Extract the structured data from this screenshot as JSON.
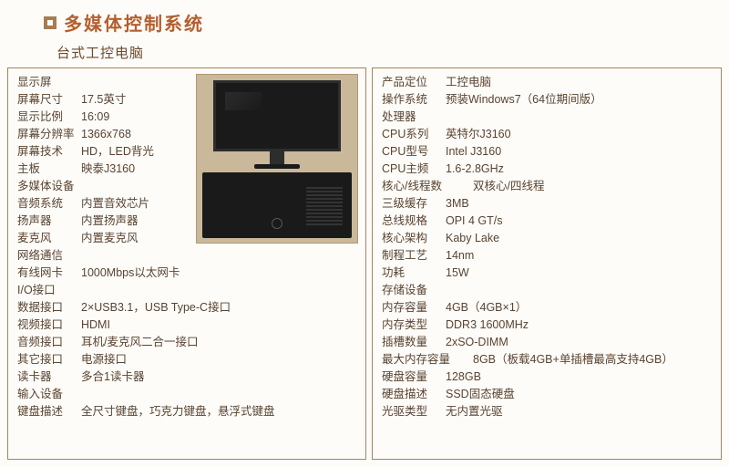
{
  "header": {
    "title": "多媒体控制系统",
    "subtitle": "台式工控电脑"
  },
  "left": {
    "sections": [
      {
        "heading": "显示屏"
      },
      {
        "label": "屏幕尺寸",
        "value": "17.5英寸"
      },
      {
        "label": "显示比例",
        "value": "16:09"
      },
      {
        "label": "屏幕分辨率",
        "value": "1366x768"
      },
      {
        "label": "屏幕技术",
        "value": "HD，LED背光"
      },
      {
        "label": "主板",
        "value": "映泰J3160"
      },
      {
        "heading": "多媒体设备"
      },
      {
        "label": "音频系统",
        "value": "内置音效芯片"
      },
      {
        "label": "扬声器",
        "value": "内置扬声器"
      },
      {
        "label": "麦克风",
        "value": "内置麦克风"
      },
      {
        "heading": "网络通信"
      },
      {
        "label": "有线网卡",
        "value": "1000Mbps以太网卡"
      },
      {
        "heading": "I/O接口"
      },
      {
        "label": "数据接口",
        "value": "2×USB3.1，USB Type-C接口"
      },
      {
        "label": "视频接口",
        "value": "HDMI"
      },
      {
        "label": "音频接口",
        "value": "耳机/麦克风二合一接口"
      },
      {
        "label": "其它接口",
        "value": "电源接口"
      },
      {
        "label": "读卡器",
        "value": "多合1读卡器"
      },
      {
        "heading": "输入设备"
      },
      {
        "label": "键盘描述",
        "value": "全尺寸键盘，巧克力键盘，悬浮式键盘"
      }
    ]
  },
  "right": {
    "sections": [
      {
        "label": "产品定位",
        "value": "工控电脑"
      },
      {
        "label": "操作系统",
        "value": "预装Windows7（64位期间版）"
      },
      {
        "heading": "处理器"
      },
      {
        "label": "CPU系列",
        "value": "英特尔J3160"
      },
      {
        "label": "CPU型号",
        "value": "Intel J3160"
      },
      {
        "label": "CPU主频",
        "value": "1.6-2.8GHz"
      },
      {
        "label": "核心/线程数",
        "value": "双核心/四线程",
        "wide": true
      },
      {
        "label": "三级缓存",
        "value": "3MB"
      },
      {
        "label": "总线规格",
        "value": "OPI 4 GT/s"
      },
      {
        "label": "核心架构",
        "value": "Kaby Lake"
      },
      {
        "label": "制程工艺",
        "value": "14nm"
      },
      {
        "label": "功耗",
        "value": "15W"
      },
      {
        "heading": "存储设备"
      },
      {
        "label": "内存容量",
        "value": "4GB（4GB×1）"
      },
      {
        "label": "内存类型",
        "value": "DDR3 1600MHz"
      },
      {
        "label": "插槽数量",
        "value": "2xSO-DIMM"
      },
      {
        "label": "最大内存容量",
        "value": "8GB（板载4GB+单插槽最高支持4GB）",
        "wide": true
      },
      {
        "label": "硬盘容量",
        "value": "128GB"
      },
      {
        "label": "硬盘描述",
        "value": "SSD固态硬盘"
      },
      {
        "label": "光驱类型",
        "value": "无内置光驱"
      }
    ]
  },
  "style": {
    "title_color": "#b45f2e",
    "text_color": "#5a4330",
    "border_color": "#a28562",
    "background": "#fdfcf9"
  }
}
